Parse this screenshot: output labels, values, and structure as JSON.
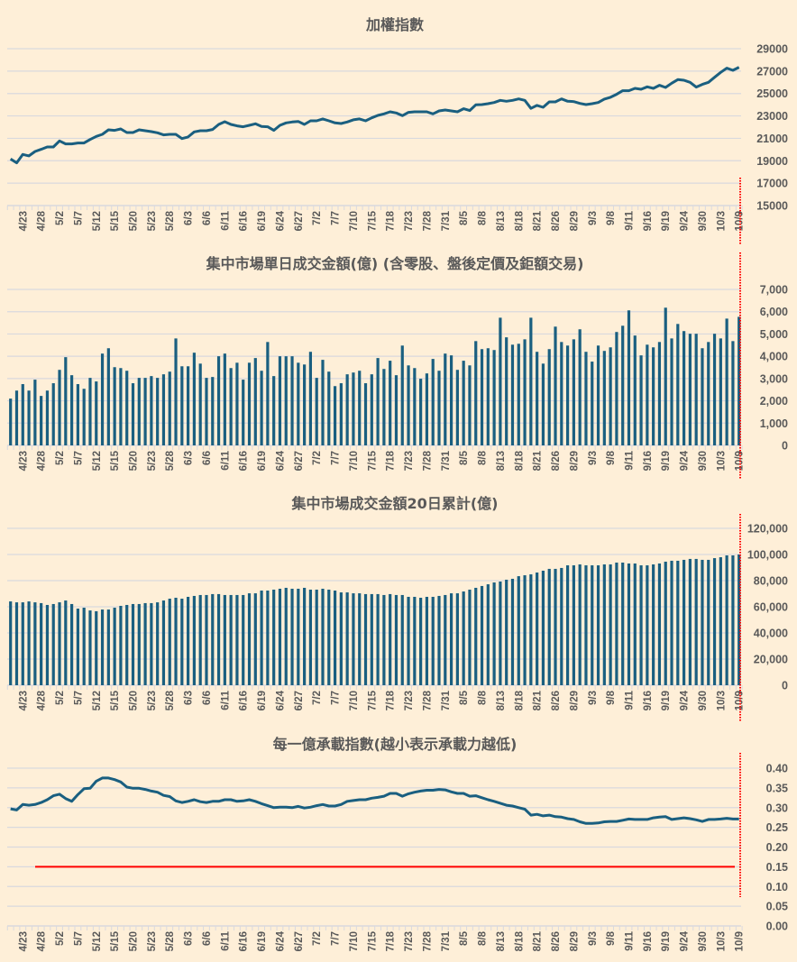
{
  "x_labels": [
    "4/23",
    "4/28",
    "5/2",
    "5/7",
    "5/12",
    "5/15",
    "5/20",
    "5/23",
    "5/28",
    "6/3",
    "6/6",
    "6/11",
    "6/16",
    "6/19",
    "6/24",
    "6/27",
    "7/2",
    "7/7",
    "7/10",
    "7/15",
    "7/18",
    "7/23",
    "7/28",
    "7/31",
    "8/5",
    "8/8",
    "8/13",
    "8/18",
    "8/21",
    "8/26",
    "8/29",
    "9/3",
    "9/8",
    "9/11",
    "9/16",
    "9/19",
    "9/24",
    "9/30",
    "10/3",
    "10/9"
  ],
  "colors": {
    "background": "#FEEFD8",
    "series": "#1A5F80",
    "grid": "#D9D9DE",
    "reference": "#FF0000",
    "text": "#595959"
  },
  "chart_data": [
    {
      "type": "line",
      "title": "加權指數",
      "ylim": [
        15000,
        29000
      ],
      "yticks": [
        "15000",
        "17000",
        "19000",
        "21000",
        "23000",
        "25000",
        "27000",
        "29000"
      ],
      "ytick_values": [
        15000,
        17000,
        19000,
        21000,
        23000,
        25000,
        27000,
        29000
      ],
      "grid": true,
      "values": [
        19160,
        18810,
        19560,
        19430,
        19830,
        20020,
        20230,
        20230,
        20770,
        20500,
        20500,
        20580,
        20580,
        20900,
        21170,
        21360,
        21760,
        21710,
        21840,
        21520,
        21520,
        21760,
        21680,
        21600,
        21490,
        21310,
        21360,
        21360,
        20980,
        21120,
        21570,
        21680,
        21680,
        21790,
        22240,
        22480,
        22240,
        22110,
        22030,
        22160,
        22300,
        22060,
        22030,
        21710,
        22160,
        22380,
        22460,
        22510,
        22240,
        22560,
        22560,
        22730,
        22560,
        22380,
        22320,
        22460,
        22650,
        22730,
        22560,
        22830,
        23050,
        23180,
        23370,
        23260,
        23020,
        23320,
        23370,
        23370,
        23370,
        23180,
        23450,
        23530,
        23450,
        23370,
        23640,
        23480,
        23990,
        24010,
        24090,
        24200,
        24390,
        24310,
        24390,
        24520,
        24390,
        23670,
        23940,
        23770,
        24250,
        24250,
        24520,
        24310,
        24280,
        24120,
        24010,
        24090,
        24200,
        24500,
        24660,
        24930,
        25250,
        25250,
        25460,
        25380,
        25600,
        25460,
        25730,
        25540,
        25920,
        26240,
        26180,
        26000,
        25570,
        25810,
        26000,
        26450,
        26880,
        27260,
        27070,
        27340
      ]
    },
    {
      "type": "bar",
      "title": "集中市場單日成交金額(億) (含零股、盤後定價及鉅額交易)",
      "ylim": [
        0,
        7000
      ],
      "yticks": [
        "0",
        "1,000",
        "2,000",
        "3,000",
        "4,000",
        "5,000",
        "6,000",
        "7,000"
      ],
      "ytick_values": [
        0,
        1000,
        2000,
        3000,
        4000,
        5000,
        6000,
        7000
      ],
      "grid": true,
      "values": [
        2100,
        2460,
        2750,
        2460,
        2950,
        2220,
        2460,
        2790,
        3390,
        3960,
        3150,
        2750,
        2540,
        3030,
        2870,
        4120,
        4360,
        3510,
        3470,
        3350,
        2790,
        3030,
        3030,
        3110,
        3030,
        3190,
        3310,
        4800,
        3550,
        3550,
        4160,
        3670,
        3030,
        3070,
        4000,
        4120,
        3470,
        3710,
        2950,
        3710,
        3920,
        3350,
        4640,
        3110,
        4000,
        4000,
        4000,
        3710,
        3630,
        4200,
        3030,
        3840,
        3310,
        2660,
        2790,
        3190,
        3270,
        3350,
        2790,
        3190,
        3920,
        3430,
        3800,
        3150,
        4480,
        3590,
        3470,
        2990,
        3230,
        3880,
        3350,
        4120,
        4040,
        3390,
        3800,
        3590,
        4680,
        4320,
        4360,
        4280,
        5730,
        4850,
        4520,
        4560,
        4760,
        5730,
        4200,
        3670,
        4320,
        5330,
        4640,
        4480,
        4760,
        5210,
        4200,
        3760,
        4480,
        4240,
        4400,
        5090,
        5370,
        6060,
        4930,
        4040,
        4520,
        4400,
        4640,
        6180,
        4800,
        5450,
        5130,
        5010,
        5010,
        4360,
        4640,
        5010,
        4800,
        5690,
        4680,
        5770
      ]
    },
    {
      "type": "bar",
      "title": "集中市場成交金額20日累計(億)",
      "ylim": [
        0,
        120000
      ],
      "yticks": [
        "0",
        "20,000",
        "40,000",
        "60,000",
        "80,000",
        "100,000",
        "120,000"
      ],
      "ytick_values": [
        0,
        20000,
        40000,
        60000,
        80000,
        100000,
        120000
      ],
      "grid": true,
      "values": [
        64100,
        63400,
        63400,
        64100,
        63400,
        62800,
        61400,
        62100,
        63400,
        64800,
        62100,
        58600,
        59300,
        57200,
        56600,
        57900,
        57900,
        59300,
        60700,
        61400,
        62100,
        62100,
        62800,
        62800,
        63400,
        64800,
        66200,
        66900,
        66200,
        67600,
        68300,
        69000,
        69000,
        69700,
        69700,
        69000,
        69000,
        69000,
        69000,
        70300,
        70300,
        72400,
        72400,
        73100,
        73800,
        74500,
        73800,
        73800,
        74500,
        73100,
        73100,
        73800,
        73100,
        72400,
        71000,
        71000,
        70300,
        70300,
        69700,
        69700,
        69700,
        69000,
        69700,
        69000,
        69000,
        67600,
        67600,
        66900,
        67600,
        67600,
        68300,
        69000,
        70300,
        70300,
        71700,
        73100,
        74500,
        75900,
        77200,
        78600,
        79300,
        80700,
        81400,
        83400,
        84100,
        84800,
        86200,
        87600,
        89000,
        89000,
        89700,
        91700,
        91700,
        92400,
        91700,
        91700,
        91700,
        92400,
        92400,
        93800,
        93800,
        93100,
        93100,
        91700,
        91700,
        92400,
        93100,
        94500,
        95200,
        95200,
        95900,
        96600,
        96600,
        95900,
        95900,
        97200,
        97900,
        99300,
        99300,
        100000
      ]
    },
    {
      "type": "line",
      "title": "每一億承載指數(越小表示承載力越低)",
      "ylim": [
        0,
        0.4
      ],
      "yticks": [
        "0.00",
        "0.05",
        "0.10",
        "0.15",
        "0.20",
        "0.25",
        "0.30",
        "0.35",
        "0.40"
      ],
      "ytick_values": [
        0,
        0.05,
        0.1,
        0.15,
        0.2,
        0.25,
        0.3,
        0.35,
        0.4
      ],
      "grid": true,
      "reference_line": 0.15,
      "values": [
        0.297,
        0.294,
        0.308,
        0.306,
        0.308,
        0.313,
        0.32,
        0.33,
        0.334,
        0.323,
        0.316,
        0.333,
        0.348,
        0.349,
        0.367,
        0.375,
        0.375,
        0.371,
        0.365,
        0.352,
        0.349,
        0.349,
        0.346,
        0.342,
        0.339,
        0.331,
        0.328,
        0.317,
        0.313,
        0.316,
        0.32,
        0.315,
        0.313,
        0.316,
        0.316,
        0.32,
        0.32,
        0.316,
        0.317,
        0.32,
        0.316,
        0.31,
        0.305,
        0.3,
        0.301,
        0.301,
        0.3,
        0.303,
        0.299,
        0.301,
        0.305,
        0.308,
        0.304,
        0.304,
        0.308,
        0.316,
        0.318,
        0.32,
        0.32,
        0.324,
        0.326,
        0.329,
        0.336,
        0.336,
        0.329,
        0.335,
        0.339,
        0.342,
        0.344,
        0.344,
        0.346,
        0.345,
        0.34,
        0.336,
        0.336,
        0.329,
        0.33,
        0.325,
        0.32,
        0.316,
        0.311,
        0.306,
        0.304,
        0.3,
        0.296,
        0.281,
        0.283,
        0.279,
        0.281,
        0.277,
        0.276,
        0.272,
        0.27,
        0.264,
        0.26,
        0.26,
        0.261,
        0.264,
        0.265,
        0.265,
        0.268,
        0.271,
        0.27,
        0.27,
        0.27,
        0.274,
        0.276,
        0.277,
        0.27,
        0.272,
        0.274,
        0.272,
        0.269,
        0.265,
        0.27,
        0.27,
        0.271,
        0.273,
        0.271,
        0.271
      ]
    }
  ]
}
